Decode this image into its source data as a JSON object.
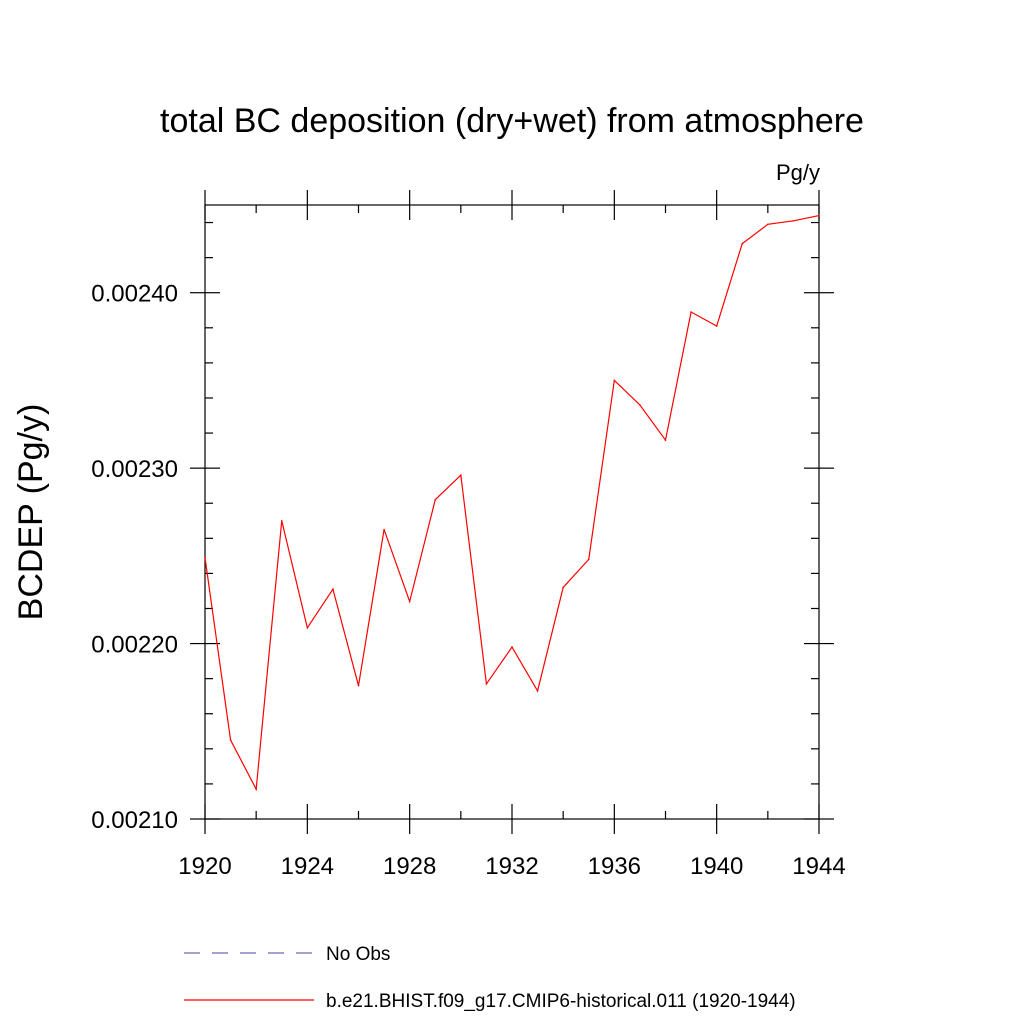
{
  "chart_data": {
    "type": "line",
    "title": "total BC deposition (dry+wet) from atmosphere",
    "units_label": "Pg/y",
    "xlabel": "",
    "ylabel": "BCDEP  (Pg/y)",
    "xlim": [
      1920,
      1944
    ],
    "ylim": [
      0.0021,
      0.00245
    ],
    "x_ticks": [
      1920,
      1924,
      1928,
      1932,
      1936,
      1940,
      1944
    ],
    "x_tick_labels": [
      "1920",
      "1924",
      "1928",
      "1932",
      "1936",
      "1940",
      "1944"
    ],
    "y_ticks": [
      0.0021,
      0.0022,
      0.0023,
      0.0024
    ],
    "y_tick_labels": [
      "0.00210",
      "0.00220",
      "0.00230",
      "0.00240"
    ],
    "grid": false,
    "legend_position": "bottom",
    "series": [
      {
        "name": "No Obs",
        "color": "#6a6ab8",
        "dash": "dashed",
        "x": [],
        "values": []
      },
      {
        "name": "b.e21.BHIST.f09_g17.CMIP6-historical.011 (1920-1944)",
        "color": "#ff0000",
        "dash": "solid",
        "x": [
          1920,
          1921,
          1922,
          1923,
          1924,
          1925,
          1926,
          1927,
          1928,
          1929,
          1930,
          1931,
          1932,
          1933,
          1934,
          1935,
          1936,
          1937,
          1938,
          1939,
          1940,
          1941,
          1942,
          1943,
          1944
        ],
        "values": [
          0.002249,
          0.002145,
          0.002117,
          0.00227,
          0.002209,
          0.002231,
          0.002176,
          0.002265,
          0.002224,
          0.002282,
          0.002296,
          0.002177,
          0.002198,
          0.002173,
          0.002232,
          0.002248,
          0.00235,
          0.002336,
          0.002316,
          0.002389,
          0.002381,
          0.002428,
          0.002439,
          0.002441,
          0.002444
        ]
      }
    ]
  }
}
